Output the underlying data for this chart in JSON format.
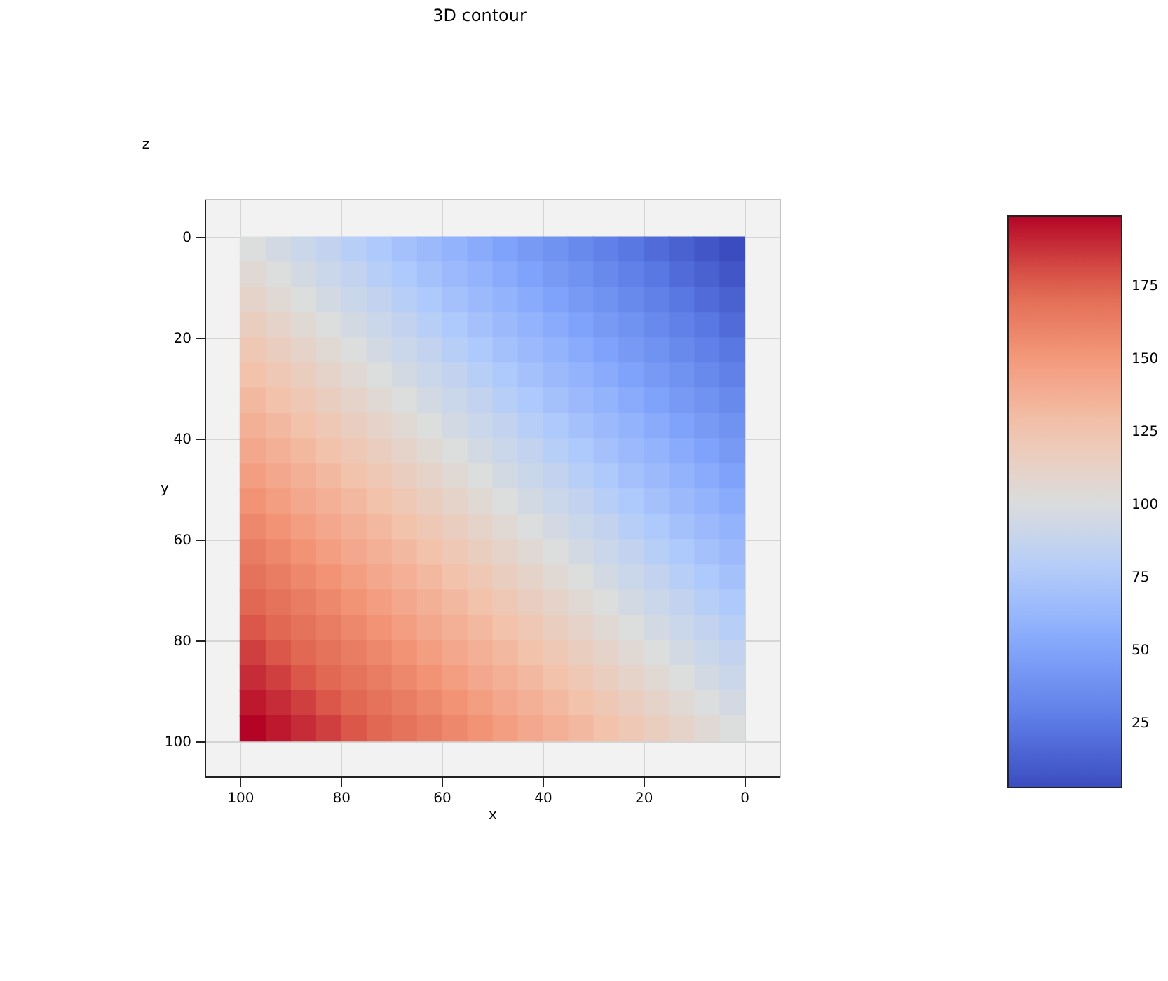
{
  "chart_data": {
    "type": "scatter",
    "title": "3D contour",
    "xlabel": "x",
    "ylabel": "y",
    "annotations": [
      "z"
    ],
    "marker": "square",
    "grid": true,
    "xlim": [
      107,
      -7
    ],
    "xticks": [
      100,
      80,
      60,
      40,
      20,
      0
    ],
    "ylim": [
      107,
      -7.5
    ],
    "yticks": [
      0,
      20,
      40,
      60,
      80,
      100
    ],
    "clim": [
      3,
      199
    ],
    "cticks": [
      25,
      50,
      75,
      100,
      125,
      150,
      175
    ],
    "x": [
      2.5,
      7.5,
      12.5,
      17.5,
      22.5,
      27.5,
      32.5,
      37.5,
      42.5,
      47.5,
      52.5,
      57.5,
      62.5,
      67.5,
      72.5,
      77.5,
      82.5,
      87.5,
      92.5,
      97.5,
      2.5,
      7.5,
      12.5,
      17.5,
      22.5,
      27.5,
      32.5,
      37.5,
      42.5,
      47.5,
      52.5,
      57.5,
      62.5,
      67.5,
      72.5,
      77.5,
      82.5,
      87.5,
      92.5,
      97.5,
      2.5,
      7.5,
      12.5,
      17.5,
      22.5,
      27.5,
      32.5,
      37.5,
      42.5,
      47.5,
      52.5,
      57.5,
      62.5,
      67.5,
      72.5,
      77.5,
      82.5,
      87.5,
      92.5,
      97.5,
      2.5,
      7.5,
      12.5,
      17.5,
      22.5,
      27.5,
      32.5,
      37.5,
      42.5,
      47.5,
      52.5,
      57.5,
      62.5,
      67.5,
      72.5,
      77.5,
      82.5,
      87.5,
      92.5,
      97.5,
      2.5,
      7.5,
      12.5,
      17.5,
      22.5,
      27.5,
      32.5,
      37.5,
      42.5,
      47.5,
      52.5,
      57.5,
      62.5,
      67.5,
      72.5,
      77.5,
      82.5,
      87.5,
      92.5,
      97.5,
      2.5,
      7.5,
      12.5,
      17.5,
      22.5,
      27.5,
      32.5,
      37.5,
      42.5,
      47.5,
      52.5,
      57.5,
      62.5,
      67.5,
      72.5,
      77.5,
      82.5,
      87.5,
      92.5,
      97.5,
      2.5,
      7.5,
      12.5,
      17.5,
      22.5,
      27.5,
      32.5,
      37.5,
      42.5,
      47.5,
      52.5,
      57.5,
      62.5,
      67.5,
      72.5,
      77.5,
      82.5,
      87.5,
      92.5,
      97.5,
      2.5,
      7.5,
      12.5,
      17.5,
      22.5,
      27.5,
      32.5,
      37.5,
      42.5,
      47.5,
      52.5,
      57.5,
      62.5,
      67.5,
      72.5,
      77.5,
      82.5,
      87.5,
      92.5,
      97.5,
      2.5,
      7.5,
      12.5,
      17.5,
      22.5,
      27.5,
      32.5,
      37.5,
      42.5,
      47.5,
      52.5,
      57.5,
      62.5,
      67.5,
      72.5,
      77.5,
      82.5,
      87.5,
      92.5,
      97.5,
      2.5,
      7.5,
      12.5,
      17.5,
      22.5,
      27.5,
      32.5,
      37.5,
      42.5,
      47.5,
      52.5,
      57.5,
      62.5,
      67.5,
      72.5,
      77.5,
      82.5,
      87.5,
      92.5,
      97.5,
      2.5,
      7.5,
      12.5,
      17.5,
      22.5,
      27.5,
      32.5,
      37.5,
      42.5,
      47.5,
      52.5,
      57.5,
      62.5,
      67.5,
      72.5,
      77.5,
      82.5,
      87.5,
      92.5,
      97.5,
      2.5,
      7.5,
      12.5,
      17.5,
      22.5,
      27.5,
      32.5,
      37.5,
      42.5,
      47.5,
      52.5,
      57.5,
      62.5,
      67.5,
      72.5,
      77.5,
      82.5,
      87.5,
      92.5,
      97.5,
      2.5,
      7.5,
      12.5,
      17.5,
      22.5,
      27.5,
      32.5,
      37.5,
      42.5,
      47.5,
      52.5,
      57.5,
      62.5,
      67.5,
      72.5,
      77.5,
      82.5,
      87.5,
      92.5,
      97.5,
      2.5,
      7.5,
      12.5,
      17.5,
      22.5,
      27.5,
      32.5,
      37.5,
      42.5,
      47.5,
      52.5,
      57.5,
      62.5,
      67.5,
      72.5,
      77.5,
      82.5,
      87.5,
      92.5,
      97.5,
      2.5,
      7.5,
      12.5,
      17.5,
      22.5,
      27.5,
      32.5,
      37.5,
      42.5,
      47.5,
      52.5,
      57.5,
      62.5,
      67.5,
      72.5,
      77.5,
      82.5,
      87.5,
      92.5,
      97.5,
      2.5,
      7.5,
      12.5,
      17.5,
      22.5,
      27.5,
      32.5,
      37.5,
      42.5,
      47.5,
      52.5,
      57.5,
      62.5,
      67.5,
      72.5,
      77.5,
      82.5,
      87.5,
      92.5,
      97.5,
      2.5,
      7.5,
      12.5,
      17.5,
      22.5,
      27.5,
      32.5,
      37.5,
      42.5,
      47.5,
      52.5,
      57.5,
      62.5,
      67.5,
      72.5,
      77.5,
      82.5,
      87.5,
      92.5,
      97.5,
      2.5,
      7.5,
      12.5,
      17.5,
      22.5,
      27.5,
      32.5,
      37.5,
      42.5,
      47.5,
      52.5,
      57.5,
      62.5,
      67.5,
      72.5,
      77.5,
      82.5,
      87.5,
      92.5,
      97.5,
      2.5,
      7.5,
      12.5,
      17.5,
      22.5,
      27.5,
      32.5,
      37.5,
      42.5,
      47.5,
      52.5,
      57.5,
      62.5,
      67.5,
      72.5,
      77.5,
      82.5,
      87.5,
      92.5,
      97.5,
      2.5,
      7.5,
      12.5,
      17.5,
      22.5,
      27.5,
      32.5,
      37.5,
      42.5,
      47.5,
      52.5,
      57.5,
      62.5,
      67.5,
      72.5,
      77.5,
      82.5,
      87.5,
      92.5,
      97.5
    ],
    "values": [
      2.5,
      2.5,
      2.5,
      2.5,
      2.5,
      2.5,
      2.5,
      2.5,
      2.5,
      2.5,
      2.5,
      2.5,
      2.5,
      2.5,
      2.5,
      2.5,
      2.5,
      2.5,
      2.5,
      2.5,
      7.5,
      7.5,
      7.5,
      7.5,
      7.5,
      7.5,
      7.5,
      7.5,
      7.5,
      7.5,
      7.5,
      7.5,
      7.5,
      7.5,
      7.5,
      7.5,
      7.5,
      7.5,
      7.5,
      7.5,
      12.5,
      12.5,
      12.5,
      12.5,
      12.5,
      12.5,
      12.5,
      12.5,
      12.5,
      12.5,
      12.5,
      12.5,
      12.5,
      12.5,
      12.5,
      12.5,
      12.5,
      12.5,
      12.5,
      12.5,
      17.5,
      17.5,
      17.5,
      17.5,
      17.5,
      17.5,
      17.5,
      17.5,
      17.5,
      17.5,
      17.5,
      17.5,
      17.5,
      17.5,
      17.5,
      17.5,
      17.5,
      17.5,
      17.5,
      17.5,
      22.5,
      22.5,
      22.5,
      22.5,
      22.5,
      22.5,
      22.5,
      22.5,
      22.5,
      22.5,
      22.5,
      22.5,
      22.5,
      22.5,
      22.5,
      22.5,
      22.5,
      22.5,
      22.5,
      22.5,
      27.5,
      27.5,
      27.5,
      27.5,
      27.5,
      27.5,
      27.5,
      27.5,
      27.5,
      27.5,
      27.5,
      27.5,
      27.5,
      27.5,
      27.5,
      27.5,
      27.5,
      27.5,
      27.5,
      27.5,
      32.5,
      32.5,
      32.5,
      32.5,
      32.5,
      32.5,
      32.5,
      32.5,
      32.5,
      32.5,
      32.5,
      32.5,
      32.5,
      32.5,
      32.5,
      32.5,
      32.5,
      32.5,
      32.5,
      32.5,
      37.5,
      37.5,
      37.5,
      37.5,
      37.5,
      37.5,
      37.5,
      37.5,
      37.5,
      37.5,
      37.5,
      37.5,
      37.5,
      37.5,
      37.5,
      37.5,
      37.5,
      37.5,
      37.5,
      37.5,
      42.5,
      42.5,
      42.5,
      42.5,
      42.5,
      42.5,
      42.5,
      42.5,
      42.5,
      42.5,
      42.5,
      42.5,
      42.5,
      42.5,
      42.5,
      42.5,
      42.5,
      42.5,
      42.5,
      42.5,
      47.5,
      47.5,
      47.5,
      47.5,
      47.5,
      47.5,
      47.5,
      47.5,
      47.5,
      47.5,
      47.5,
      47.5,
      47.5,
      47.5,
      47.5,
      47.5,
      47.5,
      47.5,
      47.5,
      47.5,
      52.5,
      52.5,
      52.5,
      52.5,
      52.5,
      52.5,
      52.5,
      52.5,
      52.5,
      52.5,
      52.5,
      52.5,
      52.5,
      52.5,
      52.5,
      52.5,
      52.5,
      52.5,
      52.5,
      52.5,
      57.5,
      57.5,
      57.5,
      57.5,
      57.5,
      57.5,
      57.5,
      57.5,
      57.5,
      57.5,
      57.5,
      57.5,
      57.5,
      57.5,
      57.5,
      57.5,
      57.5,
      57.5,
      57.5,
      57.5,
      62.5,
      62.5,
      62.5,
      62.5,
      62.5,
      62.5,
      62.5,
      62.5,
      62.5,
      62.5,
      62.5,
      62.5,
      62.5,
      62.5,
      62.5,
      62.5,
      62.5,
      62.5,
      62.5,
      62.5,
      67.5,
      67.5,
      67.5,
      67.5,
      67.5,
      67.5,
      67.5,
      67.5,
      67.5,
      67.5,
      67.5,
      67.5,
      67.5,
      67.5,
      67.5,
      67.5,
      67.5,
      67.5,
      67.5,
      67.5,
      72.5,
      72.5,
      72.5,
      72.5,
      72.5,
      72.5,
      72.5,
      72.5,
      72.5,
      72.5,
      72.5,
      72.5,
      72.5,
      72.5,
      72.5,
      72.5,
      72.5,
      72.5,
      72.5,
      72.5,
      77.5,
      77.5,
      77.5,
      77.5,
      77.5,
      77.5,
      77.5,
      77.5,
      77.5,
      77.5,
      77.5,
      77.5,
      77.5,
      77.5,
      77.5,
      77.5,
      77.5,
      77.5,
      77.5,
      77.5,
      82.5,
      82.5,
      82.5,
      82.5,
      82.5,
      82.5,
      82.5,
      82.5,
      82.5,
      82.5,
      82.5,
      82.5,
      82.5,
      82.5,
      82.5,
      82.5,
      82.5,
      82.5,
      82.5,
      82.5,
      87.5,
      87.5,
      87.5,
      87.5,
      87.5,
      87.5,
      87.5,
      87.5,
      87.5,
      87.5,
      87.5,
      87.5,
      87.5,
      87.5,
      87.5,
      87.5,
      87.5,
      87.5,
      87.5,
      87.5,
      92.5,
      92.5,
      92.5,
      92.5,
      92.5,
      92.5,
      92.5,
      92.5,
      92.5,
      92.5,
      92.5,
      92.5,
      92.5,
      92.5,
      92.5,
      92.5,
      92.5,
      92.5,
      92.5,
      92.5,
      97.5,
      97.5,
      97.5,
      97.5,
      97.5,
      97.5,
      97.5,
      97.5,
      97.5,
      97.5,
      97.5,
      97.5,
      97.5,
      97.5,
      97.5,
      97.5,
      97.5,
      97.5,
      97.5,
      97.5
    ],
    "cvalues": [
      3,
      8,
      13,
      18,
      24,
      29,
      34,
      39,
      44,
      49,
      55,
      60,
      65,
      70,
      75,
      80,
      86,
      91,
      96,
      101,
      8,
      13,
      18,
      24,
      29,
      34,
      39,
      44,
      49,
      55,
      60,
      65,
      70,
      75,
      80,
      86,
      91,
      96,
      101,
      106,
      13,
      18,
      24,
      29,
      34,
      39,
      44,
      49,
      55,
      60,
      65,
      70,
      75,
      80,
      86,
      91,
      96,
      101,
      106,
      111,
      18,
      24,
      29,
      34,
      39,
      44,
      49,
      55,
      60,
      65,
      70,
      75,
      80,
      86,
      91,
      96,
      101,
      106,
      111,
      116,
      24,
      29,
      34,
      39,
      44,
      49,
      55,
      60,
      65,
      70,
      75,
      80,
      86,
      91,
      96,
      101,
      106,
      111,
      116,
      122,
      29,
      34,
      39,
      44,
      49,
      55,
      60,
      65,
      70,
      75,
      80,
      86,
      91,
      96,
      101,
      106,
      111,
      116,
      122,
      127,
      34,
      39,
      44,
      49,
      55,
      60,
      65,
      70,
      75,
      80,
      86,
      91,
      96,
      101,
      106,
      111,
      116,
      122,
      127,
      132,
      39,
      44,
      49,
      55,
      60,
      65,
      70,
      75,
      80,
      86,
      91,
      96,
      101,
      106,
      111,
      116,
      122,
      127,
      132,
      137,
      44,
      49,
      55,
      60,
      65,
      70,
      75,
      80,
      86,
      91,
      96,
      101,
      106,
      111,
      116,
      122,
      127,
      132,
      137,
      142,
      49,
      55,
      60,
      65,
      70,
      75,
      80,
      86,
      91,
      96,
      101,
      106,
      111,
      116,
      122,
      127,
      132,
      137,
      142,
      147,
      55,
      60,
      65,
      70,
      75,
      80,
      86,
      91,
      96,
      101,
      106,
      111,
      116,
      122,
      127,
      132,
      137,
      142,
      147,
      153,
      60,
      65,
      70,
      75,
      80,
      86,
      91,
      96,
      101,
      106,
      111,
      116,
      122,
      127,
      132,
      137,
      142,
      147,
      153,
      158,
      65,
      70,
      75,
      80,
      86,
      91,
      96,
      101,
      106,
      111,
      116,
      122,
      127,
      132,
      137,
      142,
      147,
      153,
      158,
      163,
      70,
      75,
      80,
      86,
      91,
      96,
      101,
      106,
      111,
      116,
      122,
      127,
      132,
      137,
      142,
      147,
      153,
      158,
      163,
      168,
      75,
      80,
      86,
      91,
      96,
      101,
      106,
      111,
      116,
      122,
      127,
      132,
      137,
      142,
      147,
      153,
      158,
      163,
      168,
      173,
      80,
      86,
      91,
      96,
      101,
      106,
      111,
      116,
      122,
      127,
      132,
      137,
      142,
      147,
      153,
      158,
      163,
      168,
      173,
      178,
      86,
      91,
      96,
      101,
      106,
      111,
      116,
      122,
      127,
      132,
      137,
      142,
      147,
      153,
      158,
      163,
      168,
      173,
      178,
      184,
      91,
      96,
      101,
      106,
      111,
      116,
      122,
      127,
      132,
      137,
      142,
      147,
      153,
      158,
      163,
      168,
      173,
      178,
      184,
      189,
      96,
      101,
      106,
      111,
      116,
      122,
      127,
      132,
      137,
      142,
      147,
      153,
      158,
      163,
      168,
      173,
      178,
      184,
      189,
      194,
      101,
      106,
      111,
      116,
      122,
      127,
      132,
      137,
      142,
      147,
      153,
      158,
      163,
      168,
      173,
      178,
      184,
      189,
      194,
      199
    ]
  }
}
